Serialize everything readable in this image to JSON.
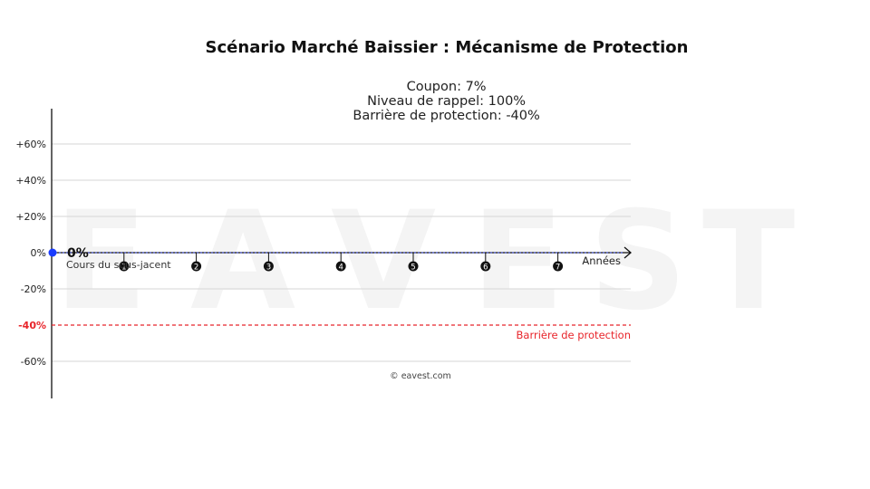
{
  "chart_data": {
    "type": "line",
    "title": "Scénario Marché Baissier : Mécanisme de Protection",
    "params": [
      "Coupon: 7%",
      "Niveau de rappel: 100%",
      "Barrière de protection: -40%"
    ],
    "xlabel": "Années",
    "x_ticks": [
      "1",
      "2",
      "3",
      "4",
      "5",
      "6",
      "7"
    ],
    "y_ticks": [
      {
        "value": 60,
        "label": "+60%"
      },
      {
        "value": 40,
        "label": "+40%"
      },
      {
        "value": 20,
        "label": "+20%"
      },
      {
        "value": 0,
        "label": "0%"
      },
      {
        "value": -20,
        "label": "-20%"
      },
      {
        "value": -40,
        "label": "-40%"
      },
      {
        "value": -60,
        "label": "-60%"
      }
    ],
    "ylim": [
      -80,
      80
    ],
    "xlim": [
      0,
      7.7
    ],
    "series": [
      {
        "name": "Cours du sous-jacent",
        "x": [
          0
        ],
        "y": [
          0
        ],
        "color": "#1a3cff"
      }
    ],
    "start_label": "0%",
    "reference_line": {
      "y": 0,
      "style": "dotted",
      "color": "#3344dd"
    },
    "barrier": {
      "y": -40,
      "label": "Barrière de protection",
      "color": "#e8242a"
    },
    "grid": true,
    "watermark": "EAVEST",
    "credit": "© eavest.com"
  }
}
